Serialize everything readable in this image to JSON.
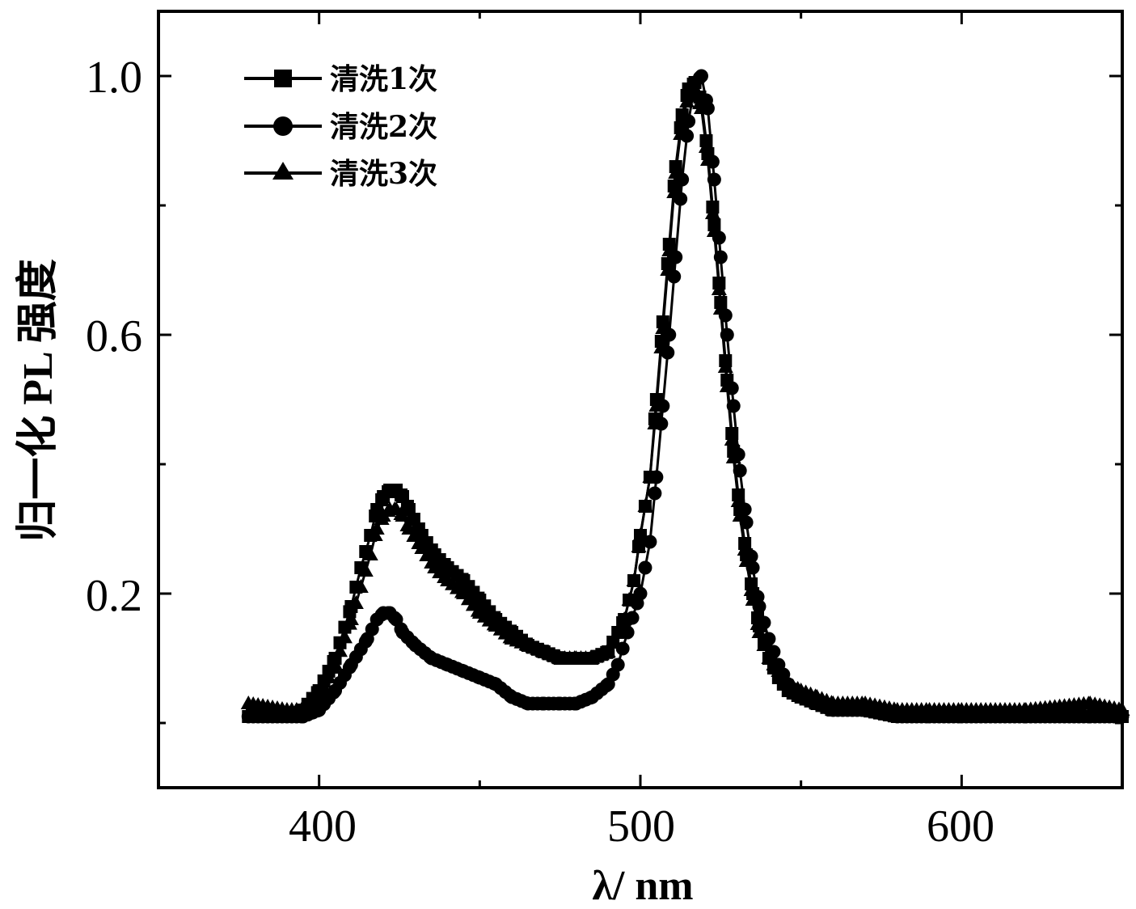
{
  "chart_data": {
    "type": "line",
    "xlabel": "λ/ nm",
    "ylabel": "归一化 PL 强度",
    "xlim": [
      350,
      650
    ],
    "ylim": [
      -0.1,
      1.1
    ],
    "xticks": [
      400,
      500,
      600
    ],
    "yticks": [
      0.2,
      0.6,
      1.0
    ],
    "xtick_labels": [
      "400",
      "500",
      "600"
    ],
    "ytick_labels": [
      "0.2",
      "0.6",
      "1.0"
    ],
    "grid": false,
    "legend_position": "top-left",
    "series": [
      {
        "name": "清洗1次",
        "marker": "square",
        "x": [
          378,
          390,
          395,
          400,
          405,
          410,
          413,
          416,
          418,
          420,
          422,
          424,
          426,
          428,
          432,
          436,
          440,
          445,
          450,
          455,
          460,
          465,
          470,
          475,
          480,
          485,
          490,
          495,
          498,
          500,
          503,
          505,
          507,
          509,
          511,
          513,
          515,
          517,
          519,
          521,
          523,
          525,
          527,
          529,
          531,
          533,
          535,
          537,
          540,
          543,
          546,
          550,
          555,
          560,
          570,
          580,
          590,
          600,
          620,
          640,
          650
        ],
        "y": [
          0.01,
          0.01,
          0.02,
          0.05,
          0.1,
          0.18,
          0.24,
          0.29,
          0.33,
          0.35,
          0.36,
          0.36,
          0.35,
          0.33,
          0.29,
          0.26,
          0.24,
          0.22,
          0.19,
          0.16,
          0.14,
          0.12,
          0.11,
          0.1,
          0.1,
          0.1,
          0.11,
          0.16,
          0.22,
          0.29,
          0.38,
          0.5,
          0.62,
          0.74,
          0.86,
          0.94,
          0.98,
          0.99,
          0.96,
          0.88,
          0.77,
          0.65,
          0.53,
          0.42,
          0.33,
          0.26,
          0.2,
          0.15,
          0.1,
          0.07,
          0.05,
          0.04,
          0.03,
          0.02,
          0.02,
          0.01,
          0.01,
          0.01,
          0.01,
          0.01,
          0.01
        ]
      },
      {
        "name": "清洗2次",
        "marker": "circle",
        "x": [
          378,
          390,
          395,
          400,
          405,
          410,
          415,
          418,
          420,
          422,
          424,
          426,
          430,
          435,
          440,
          445,
          450,
          455,
          460,
          465,
          470,
          475,
          480,
          485,
          490,
          493,
          496,
          500,
          503,
          505,
          507,
          509,
          511,
          513,
          515,
          517,
          519,
          521,
          523,
          525,
          527,
          529,
          531,
          533,
          535,
          537,
          540,
          543,
          546,
          550,
          555,
          560,
          570,
          580,
          590,
          600,
          620,
          640,
          650
        ],
        "y": [
          0.01,
          0.01,
          0.01,
          0.02,
          0.05,
          0.09,
          0.13,
          0.16,
          0.17,
          0.17,
          0.16,
          0.14,
          0.12,
          0.1,
          0.09,
          0.08,
          0.07,
          0.06,
          0.04,
          0.03,
          0.03,
          0.03,
          0.03,
          0.04,
          0.06,
          0.09,
          0.14,
          0.2,
          0.28,
          0.38,
          0.49,
          0.6,
          0.72,
          0.84,
          0.93,
          0.99,
          1.0,
          0.95,
          0.84,
          0.72,
          0.6,
          0.49,
          0.39,
          0.31,
          0.24,
          0.18,
          0.13,
          0.09,
          0.06,
          0.04,
          0.03,
          0.02,
          0.02,
          0.01,
          0.01,
          0.01,
          0.01,
          0.01,
          0.01
        ]
      },
      {
        "name": "清洗3次",
        "marker": "triangle",
        "x": [
          378,
          390,
          395,
          400,
          405,
          410,
          413,
          416,
          418,
          420,
          422,
          424,
          426,
          428,
          432,
          436,
          440,
          445,
          450,
          455,
          460,
          465,
          470,
          475,
          480,
          485,
          490,
          495,
          498,
          500,
          503,
          505,
          507,
          509,
          511,
          513,
          515,
          517,
          519,
          521,
          523,
          525,
          527,
          529,
          531,
          533,
          535,
          537,
          540,
          543,
          546,
          550,
          555,
          560,
          570,
          580,
          590,
          600,
          620,
          640,
          650
        ],
        "y": [
          0.03,
          0.02,
          0.02,
          0.04,
          0.09,
          0.16,
          0.21,
          0.26,
          0.3,
          0.32,
          0.33,
          0.33,
          0.32,
          0.3,
          0.27,
          0.24,
          0.22,
          0.2,
          0.17,
          0.15,
          0.13,
          0.12,
          0.11,
          0.1,
          0.1,
          0.1,
          0.11,
          0.16,
          0.22,
          0.29,
          0.38,
          0.49,
          0.61,
          0.73,
          0.85,
          0.93,
          0.97,
          0.98,
          0.95,
          0.87,
          0.76,
          0.64,
          0.52,
          0.41,
          0.32,
          0.25,
          0.19,
          0.14,
          0.1,
          0.08,
          0.06,
          0.05,
          0.04,
          0.03,
          0.03,
          0.02,
          0.02,
          0.02,
          0.02,
          0.03,
          0.02
        ]
      }
    ]
  }
}
